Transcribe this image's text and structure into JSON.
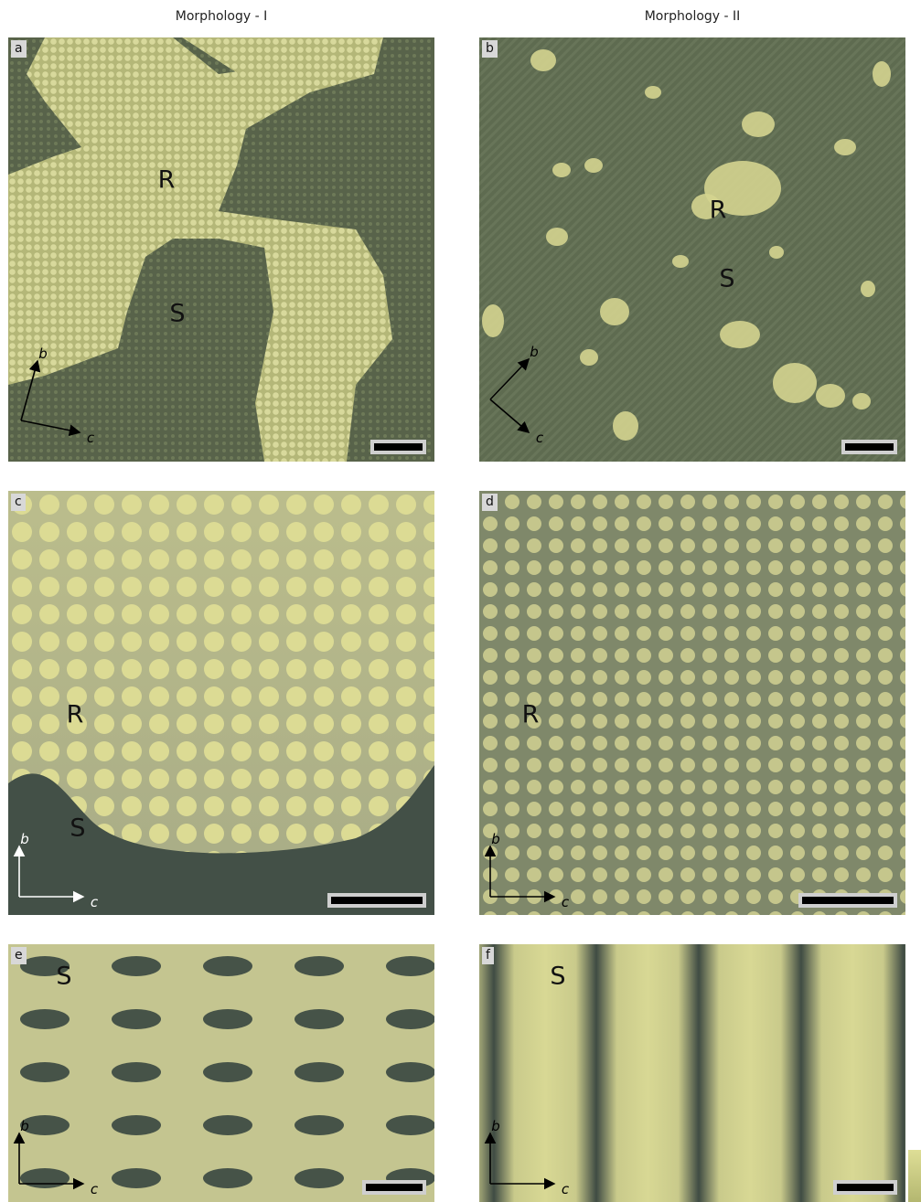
{
  "columns": [
    "Morphology - I",
    "Morphology - II"
  ],
  "panels": [
    {
      "letter": "a",
      "labels": [
        "R",
        "S"
      ],
      "axes": [
        "b",
        "c"
      ]
    },
    {
      "letter": "b",
      "labels": [
        "R",
        "S"
      ],
      "axes": [
        "b",
        "c"
      ]
    },
    {
      "letter": "c",
      "labels": [
        "R",
        "S"
      ],
      "axes": [
        "b",
        "c"
      ]
    },
    {
      "letter": "d",
      "labels": [
        "R"
      ],
      "axes": [
        "b",
        "c"
      ]
    },
    {
      "letter": "e",
      "labels": [
        "S"
      ],
      "axes": [
        "b",
        "c"
      ]
    },
    {
      "letter": "f",
      "labels": [
        "S"
      ],
      "axes": [
        "b",
        "c"
      ]
    }
  ]
}
